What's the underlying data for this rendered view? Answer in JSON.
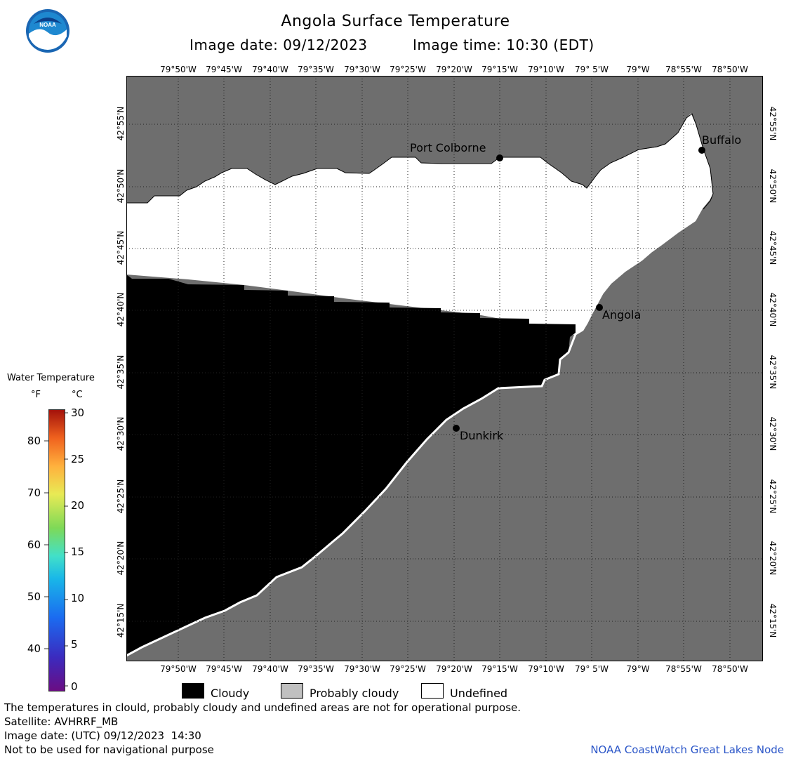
{
  "header": {
    "title": "Angola Surface Temperature",
    "image_date": "Image date: 09/12/2023",
    "image_time": "Image time: 10:30 (EDT)"
  },
  "logo": {
    "text": "NOAA"
  },
  "longitude_labels": [
    "79°50'W",
    "79°45'W",
    "79°40'W",
    "79°35'W",
    "79°30'W",
    "79°25'W",
    "79°20'W",
    "79°15'W",
    "79°10'W",
    "79° 5'W",
    "79°W",
    "78°55'W",
    "78°50'W"
  ],
  "latitude_labels": [
    "42°55'N",
    "42°50'N",
    "42°45'N",
    "42°40'N",
    "42°35'N",
    "42°30'N",
    "42°25'N",
    "42°20'N",
    "42°15'N"
  ],
  "cities": {
    "port_colborne": "Port Colborne",
    "buffalo": "Buffalo",
    "angola": "Angola",
    "dunkirk": "Dunkirk"
  },
  "colors": {
    "land": "#6e6e6e",
    "cloudy": "#000000",
    "undefined": "#ffffff",
    "probably_cloudy": "#c0c0c0",
    "footer_link": "#2b56c8"
  },
  "temperature_legend": {
    "title": "Water Temperature",
    "unit_f": "°F",
    "unit_c": "°C",
    "f_ticks": [
      "80",
      "70",
      "60",
      "50",
      "40"
    ],
    "c_ticks": [
      "30",
      "25",
      "20",
      "15",
      "10",
      "5",
      "0"
    ]
  },
  "key": {
    "cloudy": "Cloudy",
    "probably_cloudy": "Probably cloudy",
    "undefined": "Undefined"
  },
  "footer": {
    "disclaimer": "The temperatures in clould, probably cloudy and undefined areas are not for operational purpose.",
    "satellite": "Satellite: AVHRRF_MB",
    "utc_date": "Image date: (UTC) 09/12/2023  14:30",
    "navigation": "Not to be used for navigational purpose",
    "node": "NOAA CoastWatch Great Lakes Node"
  }
}
